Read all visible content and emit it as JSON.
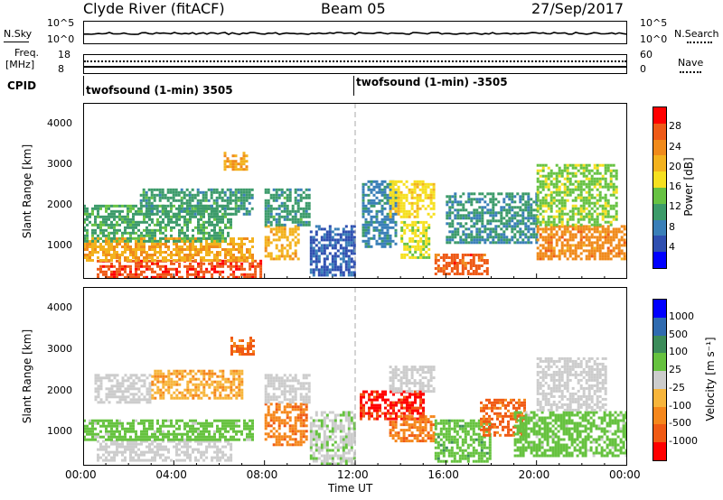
{
  "header": {
    "station": "Clyde River (fitACF)",
    "beam": "Beam 05",
    "date": "27/Sep/2017"
  },
  "top_panels": {
    "nsky_label": "N.Sky",
    "nsky_ticks": [
      "10^5",
      "10^0"
    ],
    "nsearch_label": "N.Search",
    "freq_label_1": "Freq.",
    "freq_label_2": "[MHz]",
    "freq_ticks": [
      "18",
      "8"
    ],
    "nave_label": "Nave",
    "nave_ticks": [
      "60",
      "0"
    ],
    "cpid_label": "CPID",
    "cpid_left": "twofsound (1-min) 3505",
    "cpid_right": "twofsound (1-min) -3505"
  },
  "x_axis": {
    "label": "Time UT",
    "ticks": [
      "00:00",
      "04:00",
      "08:00",
      "12:00",
      "16:00",
      "20:00",
      "00:00"
    ]
  },
  "chart_data": [
    {
      "type": "heatmap",
      "title": "",
      "xlabel": "Time UT",
      "ylabel": "Slant Range [km]",
      "xlim": [
        0,
        24
      ],
      "ylim": [
        180,
        4500
      ],
      "yticks": [
        "1000",
        "2000",
        "3000",
        "4000"
      ],
      "colorbar": {
        "label": "Power [dB]",
        "ticks": [
          "4",
          "8",
          "12",
          "16",
          "20",
          "24",
          "28"
        ],
        "range": [
          0,
          32
        ]
      },
      "regions": [
        {
          "t": [
            0.6,
            7.8
          ],
          "r": [
            250,
            650
          ],
          "v": 28
        },
        {
          "t": [
            0.0,
            7.5
          ],
          "r": [
            650,
            1200
          ],
          "v": 22
        },
        {
          "t": [
            0.0,
            6.5
          ],
          "r": [
            1100,
            2000
          ],
          "v": 12
        },
        {
          "t": [
            2.5,
            7.5
          ],
          "r": [
            1800,
            2400
          ],
          "v": 11
        },
        {
          "t": [
            6.2,
            7.2
          ],
          "r": [
            2900,
            3300
          ],
          "v": 22
        },
        {
          "t": [
            8.0,
            9.5
          ],
          "r": [
            700,
            1500
          ],
          "v": 21
        },
        {
          "t": [
            8.0,
            10.0
          ],
          "r": [
            1500,
            2400
          ],
          "v": 11
        },
        {
          "t": [
            10.0,
            12.0
          ],
          "r": [
            250,
            1500
          ],
          "v": 6
        },
        {
          "t": [
            12.3,
            13.8
          ],
          "r": [
            1000,
            2600
          ],
          "v": 9
        },
        {
          "t": [
            13.5,
            15.5
          ],
          "r": [
            1700,
            2600
          ],
          "v": 18
        },
        {
          "t": [
            14.0,
            15.3
          ],
          "r": [
            700,
            1600
          ],
          "v": 17
        },
        {
          "t": [
            15.5,
            17.8
          ],
          "r": [
            300,
            800
          ],
          "v": 27
        },
        {
          "t": [
            16.0,
            20.0
          ],
          "r": [
            1100,
            2300
          ],
          "v": 10
        },
        {
          "t": [
            20.0,
            24.0
          ],
          "r": [
            700,
            1500
          ],
          "v": 24
        },
        {
          "t": [
            20.0,
            23.5
          ],
          "r": [
            1500,
            3000
          ],
          "v": 15
        }
      ]
    },
    {
      "type": "heatmap",
      "title": "",
      "xlabel": "Time UT",
      "ylabel": "Slant Range [km]",
      "xlim": [
        0,
        24
      ],
      "ylim": [
        180,
        4500
      ],
      "yticks": [
        "1000",
        "2000",
        "3000",
        "4000"
      ],
      "colorbar": {
        "label": "Velocity [m s⁻¹]",
        "ticks": [
          "1000",
          "500",
          "100",
          "25",
          "-25",
          "-100",
          "-500",
          "-1000"
        ],
        "range": [
          -1000,
          1000
        ]
      },
      "regions": [
        {
          "t": [
            0.6,
            6.5
          ],
          "r": [
            300,
            800
          ],
          "v": 0
        },
        {
          "t": [
            0.0,
            7.5
          ],
          "r": [
            800,
            1300
          ],
          "v": 200
        },
        {
          "t": [
            0.5,
            3.0
          ],
          "r": [
            1700,
            2400
          ],
          "v": 0
        },
        {
          "t": [
            3.0,
            7.0
          ],
          "r": [
            1800,
            2500
          ],
          "v": -300
        },
        {
          "t": [
            6.5,
            7.5
          ],
          "r": [
            2900,
            3300
          ],
          "v": -600
        },
        {
          "t": [
            8.0,
            9.8
          ],
          "r": [
            700,
            1700
          ],
          "v": -500
        },
        {
          "t": [
            8.0,
            10.0
          ],
          "r": [
            1700,
            2400
          ],
          "v": 0
        },
        {
          "t": [
            10.0,
            12.0
          ],
          "r": [
            250,
            1500
          ],
          "v": 80
        },
        {
          "t": [
            12.2,
            15.0
          ],
          "r": [
            1300,
            2000
          ],
          "v": -800
        },
        {
          "t": [
            13.5,
            15.5
          ],
          "r": [
            2000,
            2600
          ],
          "v": 0
        },
        {
          "t": [
            13.5,
            15.5
          ],
          "r": [
            800,
            1400
          ],
          "v": -500
        },
        {
          "t": [
            15.5,
            18.0
          ],
          "r": [
            300,
            1300
          ],
          "v": 250
        },
        {
          "t": [
            17.5,
            19.5
          ],
          "r": [
            900,
            1800
          ],
          "v": -600
        },
        {
          "t": [
            19.0,
            24.0
          ],
          "r": [
            400,
            1500
          ],
          "v": 200
        },
        {
          "t": [
            20.0,
            23.0
          ],
          "r": [
            1500,
            2800
          ],
          "v": 0
        }
      ]
    }
  ]
}
